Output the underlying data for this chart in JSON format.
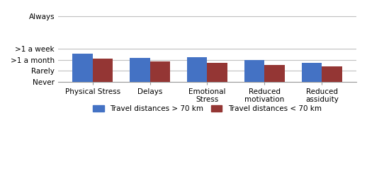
{
  "categories": [
    "Physical Stress",
    "Delays",
    "Emotional\nStress",
    "Reduced\nmotivation",
    "Reduced\nassiduity"
  ],
  "series_gt70": [
    2.58,
    2.18,
    2.22,
    2.02,
    1.75
  ],
  "series_lt70": [
    2.12,
    1.88,
    1.72,
    1.52,
    1.38
  ],
  "color_gt70": "#4472C4",
  "color_lt70": "#943634",
  "ytick_positions": [
    0,
    1,
    2,
    3,
    6
  ],
  "ytick_labels": [
    "Never",
    "Rarely",
    ">1 a month",
    ">1 a week",
    "Always"
  ],
  "ylim": [
    0,
    6.5
  ],
  "legend_gt70": "Travel distances > 70 km",
  "legend_lt70": "Travel distances < 70 km",
  "bar_width": 0.35,
  "grid_color": "#c0c0c0",
  "background_color": "#ffffff"
}
